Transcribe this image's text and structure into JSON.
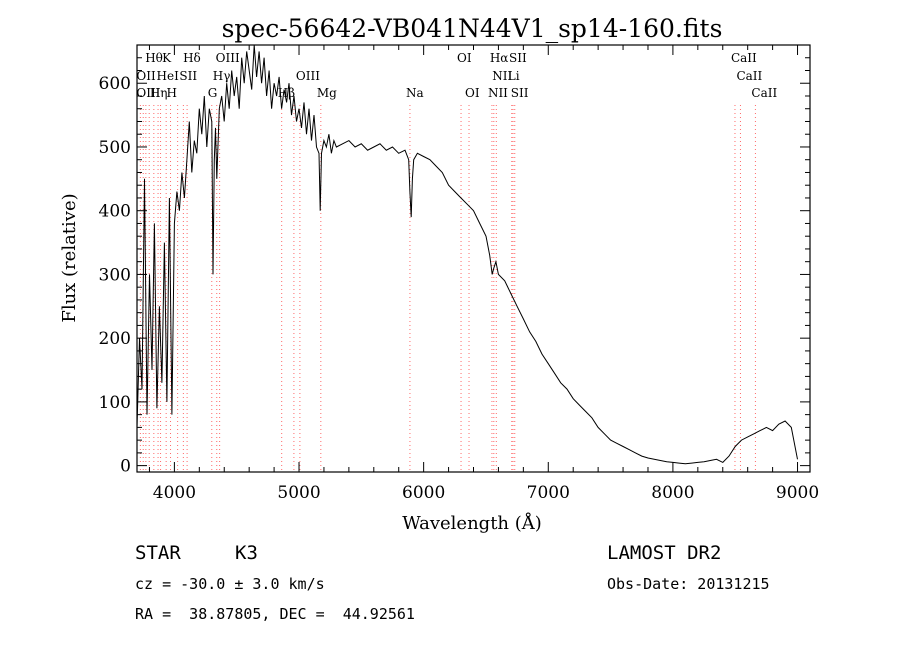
{
  "chart_data": {
    "type": "line",
    "title": "spec-56642-VB041N44V1_sp14-160.fits",
    "xlabel": "Wavelength (Å)",
    "ylabel": "Flux (relative)",
    "xlim": [
      3700,
      9100
    ],
    "ylim": [
      -10,
      660
    ],
    "xticks": [
      4000,
      5000,
      6000,
      7000,
      8000,
      9000
    ],
    "yticks": [
      0,
      100,
      200,
      300,
      400,
      500,
      600
    ],
    "grid": false,
    "line_color": "#000000",
    "marker_color": "#ff6a6a",
    "series": [
      {
        "x": [
          3700,
          3720,
          3740,
          3760,
          3780,
          3800,
          3820,
          3840,
          3860,
          3880,
          3900,
          3920,
          3940,
          3960,
          3980,
          4000,
          4020,
          4040,
          4060,
          4080,
          4100,
          4120,
          4140,
          4160,
          4180,
          4200,
          4220,
          4240,
          4260,
          4280,
          4300,
          4310,
          4320,
          4330,
          4340,
          4360,
          4380,
          4400,
          4420,
          4440,
          4460,
          4480,
          4500,
          4520,
          4540,
          4560,
          4580,
          4600,
          4620,
          4640,
          4660,
          4680,
          4700,
          4720,
          4740,
          4760,
          4780,
          4800,
          4820,
          4840,
          4860,
          4880,
          4900,
          4920,
          4940,
          4960,
          4980,
          5000,
          5020,
          5040,
          5060,
          5080,
          5100,
          5120,
          5140,
          5160,
          5170,
          5180,
          5200,
          5220,
          5240,
          5260,
          5280,
          5300,
          5350,
          5400,
          5450,
          5500,
          5550,
          5600,
          5650,
          5700,
          5750,
          5800,
          5850,
          5880,
          5890,
          5900,
          5910,
          5920,
          5950,
          6000,
          6050,
          6100,
          6150,
          6200,
          6250,
          6300,
          6350,
          6400,
          6450,
          6500,
          6530,
          6550,
          6563,
          6580,
          6600,
          6650,
          6700,
          6750,
          6800,
          6850,
          6900,
          6950,
          7000,
          7050,
          7100,
          7150,
          7200,
          7250,
          7300,
          7350,
          7400,
          7450,
          7500,
          7550,
          7600,
          7650,
          7700,
          7750,
          7800,
          7850,
          7900,
          7950,
          8000,
          8050,
          8100,
          8150,
          8200,
          8250,
          8300,
          8350,
          8400,
          8450,
          8500,
          8550,
          8600,
          8650,
          8700,
          8750,
          8800,
          8850,
          8900,
          8950,
          9000
        ],
        "y": [
          60,
          200,
          120,
          450,
          80,
          300,
          150,
          380,
          90,
          250,
          130,
          350,
          100,
          420,
          80,
          380,
          430,
          400,
          460,
          420,
          480,
          540,
          460,
          510,
          490,
          560,
          520,
          580,
          500,
          560,
          540,
          300,
          480,
          530,
          450,
          560,
          580,
          540,
          600,
          560,
          620,
          580,
          610,
          560,
          640,
          600,
          650,
          620,
          590,
          660,
          610,
          650,
          600,
          640,
          580,
          620,
          560,
          600,
          580,
          610,
          560,
          590,
          570,
          600,
          550,
          580,
          540,
          560,
          530,
          570,
          520,
          560,
          510,
          550,
          500,
          490,
          400,
          490,
          510,
          500,
          520,
          490,
          510,
          500,
          505,
          510,
          500,
          505,
          495,
          500,
          505,
          495,
          500,
          490,
          495,
          480,
          430,
          390,
          450,
          480,
          490,
          485,
          480,
          470,
          460,
          440,
          430,
          420,
          410,
          400,
          380,
          360,
          330,
          300,
          310,
          320,
          300,
          290,
          270,
          250,
          230,
          210,
          195,
          175,
          160,
          145,
          130,
          120,
          105,
          95,
          85,
          75,
          60,
          50,
          40,
          35,
          30,
          25,
          20,
          15,
          12,
          10,
          8,
          6,
          5,
          4,
          3,
          4,
          5,
          6,
          8,
          10,
          5,
          15,
          30,
          40,
          45,
          50,
          55,
          60,
          55,
          65,
          70,
          60,
          10
        ]
      }
    ],
    "line_markers": {
      "top_row": [
        "Hθ",
        "K",
        "Hδ",
        "OIII",
        "OI",
        "Hα",
        "SII",
        "CaII"
      ],
      "second_row": [
        "OII",
        "HeI",
        "SII",
        "Hγ",
        "OIII",
        "NII",
        "Li",
        "CaII"
      ],
      "third_row": [
        "OIII",
        "Hη",
        "H",
        "G",
        "Hβ",
        "Mg",
        "Na",
        "OI",
        "NII",
        "SII",
        "CaII"
      ]
    }
  },
  "info": {
    "object_class": "STAR",
    "subclass": "K3",
    "cz": "cz = -30.0 ± 3.0 km/s",
    "coords": "RA =  38.87805, DEC =  44.92561",
    "survey": "LAMOST DR2",
    "obs_date": "Obs-Date: 20131215"
  }
}
